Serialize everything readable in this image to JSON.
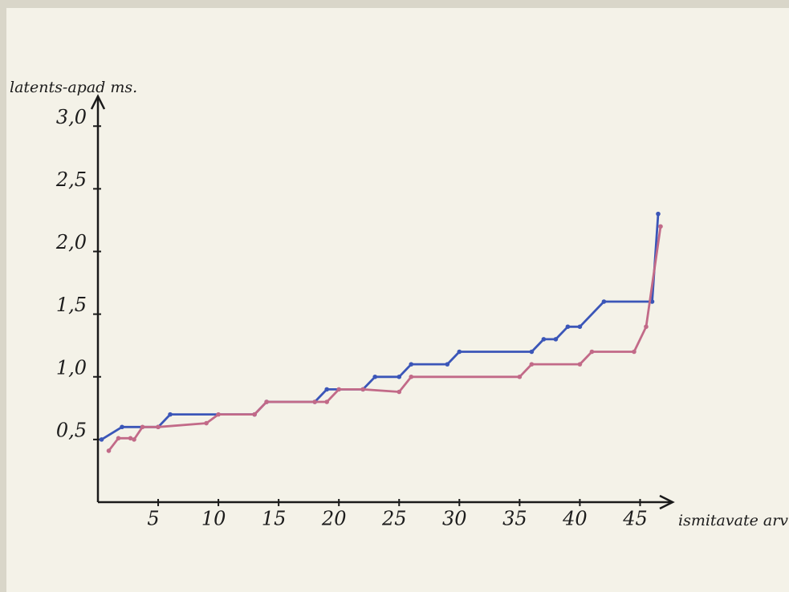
{
  "chart_data": {
    "type": "line",
    "ylabel": "latents-apad ms.",
    "xlabel": "ismitavate arv",
    "xlim": [
      0,
      47.5
    ],
    "ylim": [
      0,
      3.2
    ],
    "xticks": [
      5,
      10,
      15,
      20,
      25,
      30,
      35,
      40,
      45
    ],
    "yticks": [
      {
        "value": 0.5,
        "label": "0,5"
      },
      {
        "value": 1.0,
        "label": "1,0"
      },
      {
        "value": 1.5,
        "label": "1,5"
      },
      {
        "value": 2.0,
        "label": "2,0"
      },
      {
        "value": 2.5,
        "label": "2,5"
      },
      {
        "value": 3.0,
        "label": "3,0"
      }
    ],
    "series": [
      {
        "color": "#3b56b8",
        "x": [
          0.3,
          2,
          5,
          6,
          13,
          14,
          18,
          19,
          22,
          23,
          25,
          26,
          29,
          30,
          36,
          37,
          38,
          39,
          40,
          42,
          46,
          46.5
        ],
        "values": [
          0.5,
          0.6,
          0.6,
          0.7,
          0.7,
          0.8,
          0.8,
          0.9,
          0.9,
          1.0,
          1.0,
          1.1,
          1.1,
          1.2,
          1.2,
          1.3,
          1.3,
          1.4,
          1.4,
          1.6,
          1.6,
          2.3
        ]
      },
      {
        "color": "#c26a88",
        "x": [
          0.9,
          1.7,
          2.7,
          3,
          3.7,
          5,
          9,
          10,
          13,
          14,
          18,
          19,
          20,
          22,
          25,
          26,
          35,
          36,
          40,
          41,
          44.5,
          45.5,
          46.7
        ],
        "values": [
          0.41,
          0.51,
          0.51,
          0.5,
          0.6,
          0.6,
          0.63,
          0.7,
          0.7,
          0.8,
          0.8,
          0.8,
          0.9,
          0.9,
          0.88,
          1.0,
          1.0,
          1.1,
          1.1,
          1.2,
          1.2,
          1.4,
          2.2
        ]
      }
    ]
  }
}
